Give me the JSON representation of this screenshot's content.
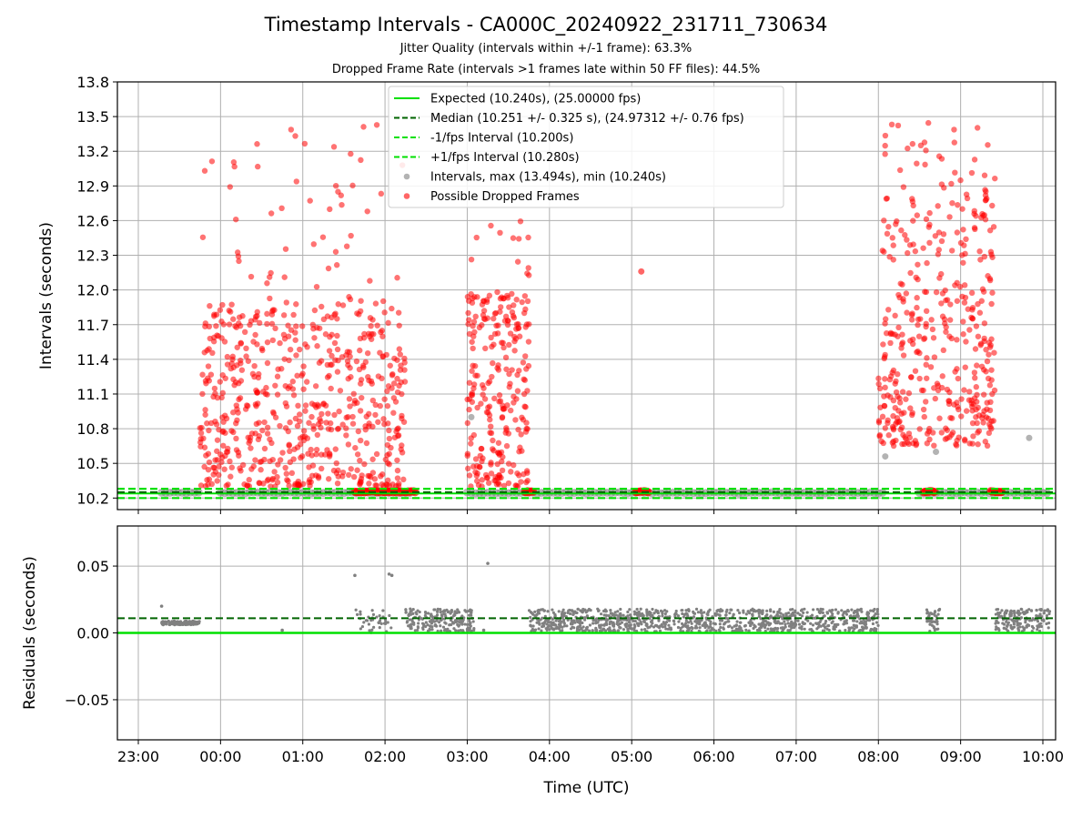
{
  "title": "Timestamp Intervals - CA000C_20240922_231711_730634",
  "subtitle_1": "Jitter Quality (intervals within +/-1 frame): 63.3%",
  "subtitle_2": "Dropped Frame Rate (intervals >1 frames late within 50 FF files): 44.5%",
  "colors": {
    "expected": "#00e000",
    "median": "#006400",
    "interval": "#00e000",
    "intervals_points": "#808080",
    "dropped": "#ff0000",
    "grid": "#b0b0b0"
  },
  "chart_data": [
    {
      "type": "scatter",
      "ylabel": "Intervals (seconds)",
      "ylim": [
        10.1,
        13.8
      ],
      "yticks": [
        "10.2",
        "10.5",
        "10.8",
        "11.1",
        "11.4",
        "11.7",
        "12.0",
        "12.3",
        "12.6",
        "12.9",
        "13.2",
        "13.5",
        "13.8"
      ],
      "grid": true,
      "legend_position": "top-center",
      "legend": [
        {
          "label": "Expected (10.240s), (25.00000 fps)",
          "style": "solid",
          "color": "#00e000"
        },
        {
          "label": "Median (10.251 +/- 0.325 s), (24.97312 +/- 0.76 fps)",
          "style": "dashed",
          "color": "#006400"
        },
        {
          "label": "-1/fps Interval (10.200s)",
          "style": "dashed",
          "color": "#00e000"
        },
        {
          "label": "+1/fps Interval (10.280s)",
          "style": "dashed",
          "color": "#00e000"
        },
        {
          "label": "Intervals, max (13.494s), min (10.240s)",
          "style": "dot",
          "color": "#808080"
        },
        {
          "label": "Possible Dropped Frames",
          "style": "dot",
          "color": "#ff0000"
        }
      ],
      "lines": {
        "expected": 10.24,
        "median": 10.251,
        "minus_fps": 10.2,
        "plus_fps": 10.28
      },
      "baseline_value": 10.245,
      "dropped_clusters": [
        {
          "start": "23:45",
          "end": "02:15",
          "n": 650,
          "ymin": 10.3,
          "ymax": 11.9,
          "tail": 13.45
        },
        {
          "start": "03:00",
          "end": "03:45",
          "n": 260,
          "ymin": 10.3,
          "ymax": 12.0,
          "tail": 12.62
        },
        {
          "start": "08:00",
          "end": "09:25",
          "n": 420,
          "ymin": 10.65,
          "ymax": 12.8,
          "tail": 13.49
        }
      ],
      "dropped_near_baseline": [
        {
          "start": "01:38",
          "end": "02:22"
        },
        {
          "start": "03:42",
          "end": "03:48"
        },
        {
          "start": "05:03",
          "end": "05:12"
        },
        {
          "start": "08:33",
          "end": "08:41"
        },
        {
          "start": "09:22",
          "end": "09:30"
        }
      ],
      "notable_points": [
        {
          "x": "05:07",
          "y": 12.16,
          "kind": "dropped"
        },
        {
          "x": "09:50",
          "y": 10.72,
          "kind": "interval"
        },
        {
          "x": "08:05",
          "y": 10.56,
          "kind": "interval"
        },
        {
          "x": "08:42",
          "y": 10.6,
          "kind": "interval"
        },
        {
          "x": "03:03",
          "y": 10.9,
          "kind": "interval"
        }
      ]
    },
    {
      "type": "scatter",
      "ylabel": "Residuals (seconds)",
      "xlabel": "Time (UTC)",
      "ylim": [
        -0.08,
        0.08
      ],
      "yticks": [
        "−0.05",
        "0.00",
        "0.05"
      ],
      "xticks": [
        "23:00",
        "00:00",
        "01:00",
        "02:00",
        "03:00",
        "04:00",
        "05:00",
        "06:00",
        "07:00",
        "08:00",
        "09:00",
        "10:00"
      ],
      "x_start": "22:45",
      "x_end": "10:05",
      "grid": true,
      "lines": {
        "zero": 0.0,
        "median_residual": 0.011
      },
      "residual_bands": [
        {
          "start": "23:17",
          "end": "23:45",
          "low": 0.006,
          "high": 0.009
        },
        {
          "start": "02:15",
          "end": "03:05",
          "low": 0.001,
          "high": 0.018
        },
        {
          "start": "03:45",
          "end": "08:00",
          "low": 0.001,
          "high": 0.018
        },
        {
          "start": "08:35",
          "end": "08:45",
          "low": 0.001,
          "high": 0.018
        },
        {
          "start": "09:25",
          "end": "10:05",
          "low": 0.001,
          "high": 0.018
        }
      ],
      "outliers": [
        {
          "x": "01:38",
          "y": 0.043
        },
        {
          "x": "02:03",
          "y": 0.044
        },
        {
          "x": "02:05",
          "y": 0.043
        },
        {
          "x": "03:15",
          "y": 0.052
        },
        {
          "x": "23:17",
          "y": 0.02
        },
        {
          "x": "00:45",
          "y": 0.002
        },
        {
          "x": "03:12",
          "y": 0.002
        }
      ]
    }
  ]
}
